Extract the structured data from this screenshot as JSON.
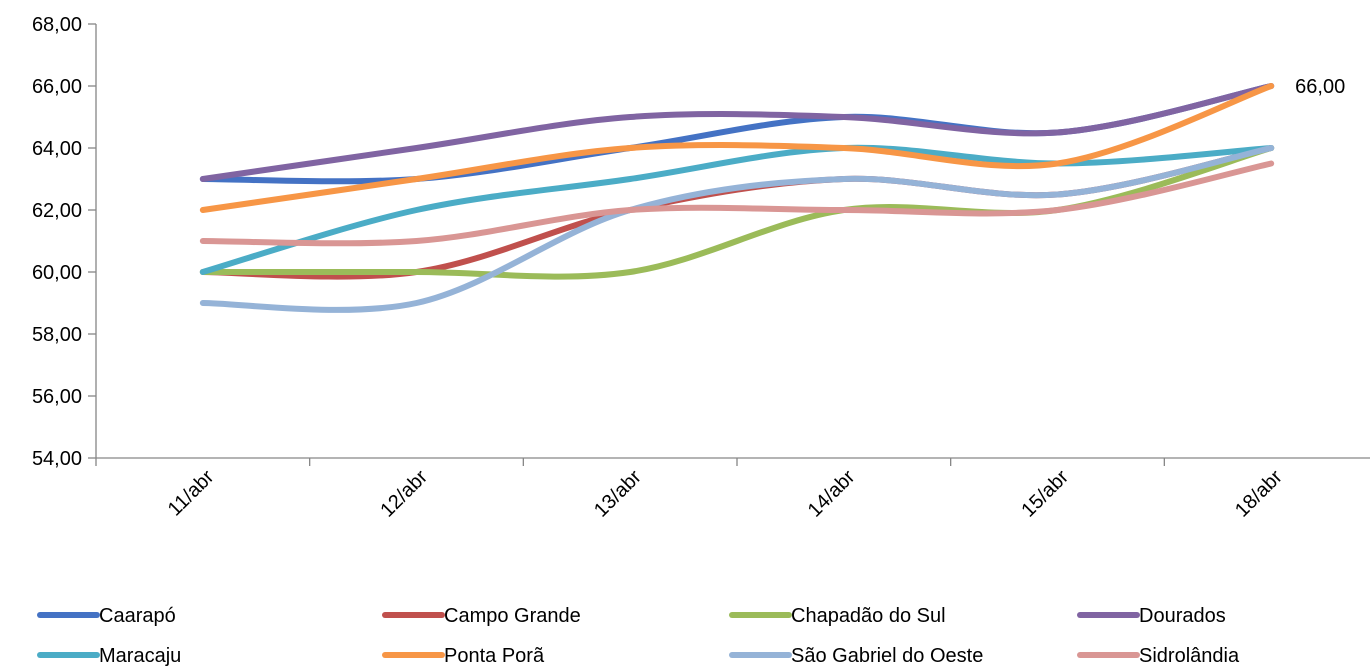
{
  "chart_data": {
    "type": "line",
    "smooth": true,
    "categories": [
      "11/abr",
      "12/abr",
      "13/abr",
      "14/abr",
      "15/abr",
      "18/abr"
    ],
    "ylim": [
      54,
      68
    ],
    "yticks": [
      "54,00",
      "56,00",
      "58,00",
      "60,00",
      "62,00",
      "64,00",
      "66,00",
      "68,00"
    ],
    "grid": false,
    "legend_position": "bottom",
    "series": [
      {
        "name": "Caarapó",
        "color": "#4472C4",
        "values": [
          63,
          63,
          64,
          65,
          64.5,
          66
        ]
      },
      {
        "name": "Campo Grande",
        "color": "#C0504D",
        "values": [
          60,
          60,
          62,
          63,
          62.5,
          64
        ]
      },
      {
        "name": "Chapadão do Sul",
        "color": "#9BBB59",
        "values": [
          60,
          60,
          60,
          62,
          62,
          64
        ]
      },
      {
        "name": "Dourados",
        "color": "#8064A2",
        "values": [
          63,
          64,
          65,
          65,
          64.5,
          66
        ]
      },
      {
        "name": "Maracaju",
        "color": "#4BACC6",
        "values": [
          60,
          62,
          63,
          64,
          63.5,
          64
        ]
      },
      {
        "name": "Ponta Porã",
        "color": "#F79646",
        "values": [
          62,
          63,
          64,
          64,
          63.5,
          66
        ]
      },
      {
        "name": "São Gabriel do Oeste",
        "color": "#95B3D7",
        "values": [
          59,
          59,
          62,
          63,
          62.5,
          64
        ]
      },
      {
        "name": "Sidrolândia",
        "color": "#D99694",
        "values": [
          61,
          61,
          62,
          62,
          62,
          63.5
        ]
      }
    ],
    "annotations": [
      {
        "text": "66,00",
        "series": "Ponta Porã",
        "category": "18/abr"
      }
    ]
  }
}
